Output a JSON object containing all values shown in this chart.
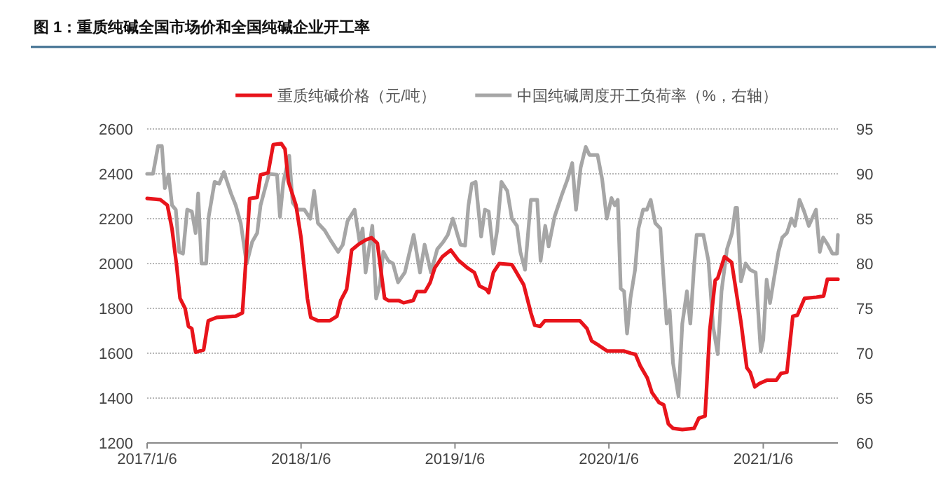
{
  "chart_data": {
    "type": "line",
    "title": "图 1：重质纯碱全国市场价和全国纯碱企业开工率",
    "legend": "top",
    "grid": "y",
    "line_style": "solid",
    "marker": "none",
    "xlim": [
      "2017-01-06",
      "2021-07-02"
    ],
    "xticks": [
      {
        "value": "2017-01-06",
        "label": "2017/1/6"
      },
      {
        "value": "2018-01-06",
        "label": "2018/1/6"
      },
      {
        "value": "2019-01-06",
        "label": "2019/1/6"
      },
      {
        "value": "2020-01-06",
        "label": "2020/1/6"
      },
      {
        "value": "2021-01-06",
        "label": "2021/1/6"
      }
    ],
    "ylim": [
      1200,
      2600
    ],
    "yticks": [
      1200,
      1400,
      1600,
      1800,
      2000,
      2200,
      2400,
      2600
    ],
    "y2lim": [
      60,
      95
    ],
    "y2ticks": [
      60,
      65,
      70,
      75,
      80,
      85,
      90,
      95
    ],
    "series": [
      {
        "name": "重质纯碱价格（元/吨）",
        "color": "#e8141b",
        "x": [
          "2017-01-06",
          "2017-02-06",
          "2017-02-23",
          "2017-03-06",
          "2017-03-17",
          "2017-03-25",
          "2017-04-06",
          "2017-04-14",
          "2017-04-22",
          "2017-05-01",
          "2017-05-20",
          "2017-05-31",
          "2017-06-20",
          "2017-08-04",
          "2017-08-20",
          "2017-08-28",
          "2017-09-06",
          "2017-09-24",
          "2017-10-02",
          "2017-10-20",
          "2017-11-01",
          "2017-11-20",
          "2017-11-29",
          "2017-12-07",
          "2017-12-25",
          "2018-01-06",
          "2018-01-21",
          "2018-01-29",
          "2018-02-15",
          "2018-03-15",
          "2018-04-01",
          "2018-04-10",
          "2018-04-24",
          "2018-05-06",
          "2018-05-22",
          "2018-06-08",
          "2018-06-22",
          "2018-07-06",
          "2018-07-23",
          "2018-08-01",
          "2018-08-26",
          "2018-09-06",
          "2018-09-29",
          "2018-10-08",
          "2018-10-27",
          "2018-11-08",
          "2018-11-19",
          "2018-12-07",
          "2018-12-27",
          "2019-01-14",
          "2019-02-05",
          "2019-02-21",
          "2019-03-05",
          "2019-03-21",
          "2019-03-27",
          "2019-04-07",
          "2019-04-21",
          "2019-05-21",
          "2019-06-01",
          "2019-06-18",
          "2019-07-05",
          "2019-07-14",
          "2019-07-27",
          "2019-08-07",
          "2019-10-29",
          "2019-11-15",
          "2019-11-26",
          "2019-12-13",
          "2020-01-02",
          "2020-02-10",
          "2020-02-27",
          "2020-03-09",
          "2020-03-20",
          "2020-04-06",
          "2020-04-17",
          "2020-05-04",
          "2020-05-15",
          "2020-05-26",
          "2020-06-06",
          "2020-06-28",
          "2020-07-26",
          "2020-08-06",
          "2020-08-21",
          "2020-09-01",
          "2020-09-14",
          "2020-09-20",
          "2020-10-06",
          "2020-10-23",
          "2020-11-14",
          "2020-11-28",
          "2020-12-06",
          "2020-12-17",
          "2020-12-28",
          "2021-01-15",
          "2021-02-06",
          "2021-02-17",
          "2021-03-03",
          "2021-03-17",
          "2021-03-28",
          "2021-04-14",
          "2021-05-12",
          "2021-05-29",
          "2021-06-07",
          "2021-07-02"
        ],
        "values": [
          2290,
          2285,
          2260,
          2155,
          1990,
          1845,
          1800,
          1720,
          1710,
          1605,
          1615,
          1745,
          1760,
          1765,
          1780,
          2010,
          2290,
          2295,
          2395,
          2405,
          2530,
          2535,
          2510,
          2365,
          2260,
          2115,
          1845,
          1760,
          1745,
          1745,
          1765,
          1835,
          1885,
          2060,
          2085,
          2105,
          2115,
          2090,
          1845,
          1835,
          1835,
          1825,
          1835,
          1875,
          1875,
          1915,
          1980,
          2030,
          2060,
          2015,
          1980,
          1960,
          1900,
          1885,
          1870,
          1960,
          2000,
          1995,
          1960,
          1905,
          1780,
          1725,
          1720,
          1745,
          1745,
          1710,
          1655,
          1635,
          1610,
          1610,
          1600,
          1595,
          1545,
          1490,
          1425,
          1380,
          1370,
          1285,
          1265,
          1260,
          1265,
          1310,
          1320,
          1700,
          1925,
          1935,
          2030,
          2005,
          1740,
          1535,
          1515,
          1450,
          1465,
          1480,
          1480,
          1510,
          1515,
          1765,
          1770,
          1845,
          1850,
          1855,
          1930,
          1930
        ]
      },
      {
        "name": "中国纯碱周度开工负荷率（%，右轴）",
        "axis": "y2",
        "color": "#a6a6a6",
        "x": [
          "2017-01-06",
          "2017-01-20",
          "2017-02-01",
          "2017-02-10",
          "2017-02-17",
          "2017-02-26",
          "2017-03-06",
          "2017-03-15",
          "2017-03-23",
          "2017-04-01",
          "2017-04-11",
          "2017-04-22",
          "2017-05-01",
          "2017-05-07",
          "2017-05-15",
          "2017-05-26",
          "2017-06-01",
          "2017-06-15",
          "2017-06-26",
          "2017-07-07",
          "2017-07-24",
          "2017-08-04",
          "2017-08-16",
          "2017-08-30",
          "2017-09-12",
          "2017-09-24",
          "2017-10-02",
          "2017-10-14",
          "2017-10-22",
          "2017-11-10",
          "2017-11-17",
          "2017-11-25",
          "2017-12-09",
          "2017-12-17",
          "2017-12-29",
          "2018-01-14",
          "2018-01-28",
          "2018-02-06",
          "2018-02-15",
          "2018-03-03",
          "2018-03-17",
          "2018-04-04",
          "2018-04-15",
          "2018-04-26",
          "2018-05-13",
          "2018-05-25",
          "2018-06-01",
          "2018-06-08",
          "2018-06-24",
          "2018-07-03",
          "2018-07-12",
          "2018-07-20",
          "2018-08-01",
          "2018-08-12",
          "2018-08-24",
          "2018-09-09",
          "2018-09-30",
          "2018-10-15",
          "2018-10-26",
          "2018-11-10",
          "2018-11-25",
          "2018-12-09",
          "2018-12-20",
          "2019-01-01",
          "2019-01-12",
          "2019-01-19",
          "2019-01-30",
          "2019-02-07",
          "2019-02-15",
          "2019-02-24",
          "2019-03-09",
          "2019-03-18",
          "2019-03-27",
          "2019-04-07",
          "2019-04-16",
          "2019-04-26",
          "2019-05-10",
          "2019-05-21",
          "2019-06-02",
          "2019-06-10",
          "2019-06-21",
          "2019-07-05",
          "2019-07-20",
          "2019-07-28",
          "2019-08-08",
          "2019-08-16",
          "2019-08-30",
          "2019-09-16",
          "2019-09-30",
          "2019-10-11",
          "2019-10-20",
          "2019-10-31",
          "2019-11-12",
          "2019-11-21",
          "2019-12-10",
          "2019-12-21",
          "2020-01-01",
          "2020-01-12",
          "2020-01-20",
          "2020-01-27",
          "2020-02-03",
          "2020-02-11",
          "2020-02-18",
          "2020-02-26",
          "2020-03-08",
          "2020-03-16",
          "2020-03-27",
          "2020-04-05",
          "2020-04-14",
          "2020-04-25",
          "2020-05-07",
          "2020-05-14",
          "2020-05-22",
          "2020-05-29",
          "2020-06-06",
          "2020-06-19",
          "2020-06-28",
          "2020-07-09",
          "2020-07-17",
          "2020-07-26",
          "2020-08-01",
          "2020-08-17",
          "2020-08-29",
          "2020-09-09",
          "2020-09-20",
          "2020-09-29",
          "2020-10-12",
          "2020-10-24",
          "2020-11-01",
          "2020-11-05",
          "2020-11-14",
          "2020-11-25",
          "2020-12-06",
          "2020-12-19",
          "2020-12-31",
          "2021-01-06",
          "2021-01-14",
          "2021-01-22",
          "2021-01-31",
          "2021-02-11",
          "2021-02-20",
          "2021-03-03",
          "2021-03-14",
          "2021-03-22",
          "2021-04-02",
          "2021-04-13",
          "2021-04-24",
          "2021-05-11",
          "2021-05-20",
          "2021-05-28",
          "2021-06-08",
          "2021-06-19",
          "2021-06-30",
          "2021-07-02"
        ],
        "values": [
          90,
          90,
          93.1,
          93.1,
          88.4,
          89.9,
          86.5,
          86,
          81.3,
          81.1,
          86,
          85.8,
          83.4,
          87.8,
          80,
          80,
          85.2,
          89.1,
          88.9,
          90.2,
          87.8,
          86.5,
          84.5,
          80,
          82.4,
          83.4,
          86.5,
          88.6,
          90,
          89.9,
          85.2,
          89.1,
          92,
          86.8,
          86,
          86,
          85,
          88.1,
          84.5,
          83.7,
          82.6,
          81.3,
          82.1,
          84.7,
          86,
          82.4,
          83.9,
          79,
          84.2,
          76.1,
          77.7,
          81.3,
          80.3,
          80,
          77.9,
          79,
          83.2,
          79,
          82.1,
          79,
          81.6,
          82.4,
          83.2,
          85,
          83.2,
          82.1,
          82,
          86.5,
          88.9,
          89.1,
          83,
          86,
          85.8,
          81.1,
          83.7,
          89.1,
          88.1,
          85,
          84.2,
          81.3,
          79.3,
          87.1,
          87.1,
          80.3,
          84.2,
          81.9,
          85.2,
          87.6,
          89.4,
          91.2,
          86,
          90.7,
          93,
          92.1,
          92.1,
          89.4,
          85,
          87.3,
          86.5,
          87.1,
          77.2,
          76.9,
          72.2,
          76.1,
          79.3,
          83.9,
          86,
          86,
          87.1,
          84.5,
          83.9,
          78.7,
          73.3,
          74.8,
          68.9,
          65.2,
          73.3,
          76.9,
          73.3,
          79.8,
          83.2,
          83.2,
          80.3,
          73,
          69.9,
          76.9,
          81.6,
          83.4,
          86.2,
          86.2,
          78,
          80,
          79.3,
          79,
          70.2,
          71.5,
          78.2,
          75.6,
          78.2,
          81.3,
          82.9,
          83.4,
          85,
          84.2,
          87.1,
          85.8,
          84.2,
          86,
          81.3,
          82.9,
          82.1,
          81.1,
          81.1,
          83.2
        ]
      }
    ]
  }
}
